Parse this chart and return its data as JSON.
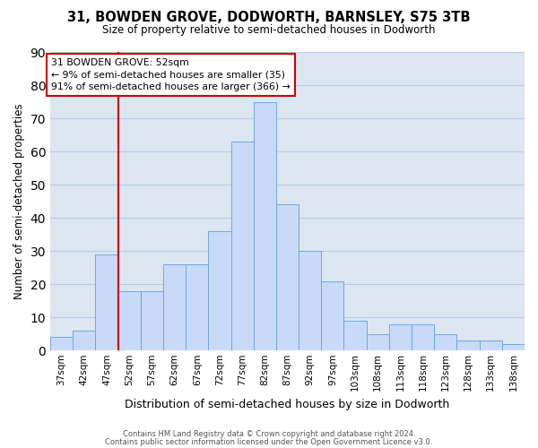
{
  "title": "31, BOWDEN GROVE, DODWORTH, BARNSLEY, S75 3TB",
  "subtitle": "Size of property relative to semi-detached houses in Dodworth",
  "xlabel": "Distribution of semi-detached houses by size in Dodworth",
  "ylabel": "Number of semi-detached properties",
  "bin_labels": [
    "37sqm",
    "42sqm",
    "47sqm",
    "52sqm",
    "57sqm",
    "62sqm",
    "67sqm",
    "72sqm",
    "77sqm",
    "82sqm",
    "87sqm",
    "92sqm",
    "97sqm",
    "103sqm",
    "108sqm",
    "113sqm",
    "118sqm",
    "123sqm",
    "128sqm",
    "133sqm",
    "138sqm"
  ],
  "bar_values": [
    4,
    6,
    29,
    18,
    18,
    26,
    26,
    36,
    63,
    75,
    44,
    30,
    21,
    9,
    5,
    8,
    8,
    5,
    3,
    3,
    2
  ],
  "bar_color": "#c9daf8",
  "bar_edge_color": "#6fa8dc",
  "grid_color": "#b8cce4",
  "vline_color": "#cc0000",
  "ylim_max": 90,
  "yticks": [
    0,
    10,
    20,
    30,
    40,
    50,
    60,
    70,
    80,
    90
  ],
  "annotation_title": "31 BOWDEN GROVE: 52sqm",
  "annotation_line1": "← 9% of semi-detached houses are smaller (35)",
  "annotation_line2": "91% of semi-detached houses are larger (366) →",
  "footer_line1": "Contains HM Land Registry data © Crown copyright and database right 2024.",
  "footer_line2": "Contains public sector information licensed under the Open Government Licence v3.0.",
  "background_color": "#ffffff",
  "plot_background_color": "#dce6f1"
}
